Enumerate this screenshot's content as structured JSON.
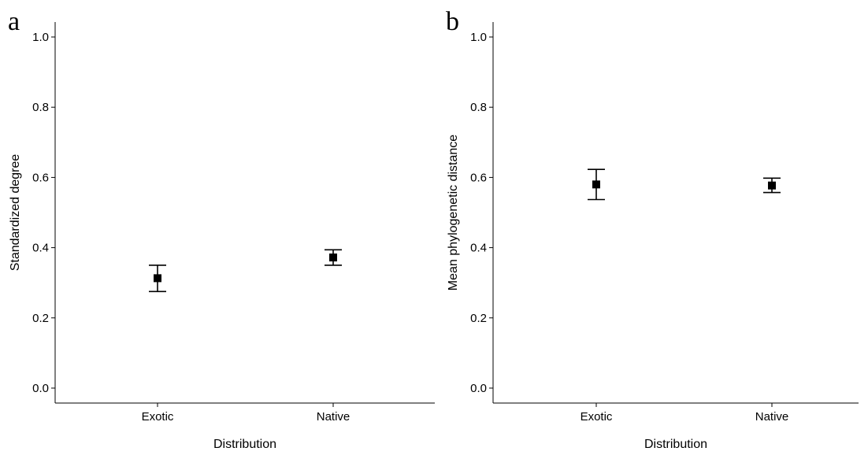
{
  "chart_data": [
    {
      "type": "scatter",
      "panel_label": "a",
      "categories": [
        "Exotic",
        "Native"
      ],
      "values": [
        0.313,
        0.372
      ],
      "error_low": [
        0.275,
        0.35
      ],
      "error_high": [
        0.35,
        0.394
      ],
      "xlabel": "Distribution",
      "ylabel": "Standardized degree",
      "ylim": [
        0.0,
        1.0
      ],
      "yticks": [
        "0.0",
        "0.2",
        "0.4",
        "0.6",
        "0.8",
        "1.0"
      ],
      "grid": false,
      "marker": "square",
      "color": "#000000"
    },
    {
      "type": "scatter",
      "panel_label": "b",
      "categories": [
        "Exotic",
        "Native"
      ],
      "values": [
        0.58,
        0.577
      ],
      "error_low": [
        0.537,
        0.557
      ],
      "error_high": [
        0.623,
        0.598
      ],
      "xlabel": "Distribution",
      "ylabel": "Mean phylogenetic distance",
      "ylim": [
        0.0,
        1.0
      ],
      "yticks": [
        "0.0",
        "0.2",
        "0.4",
        "0.6",
        "0.8",
        "1.0"
      ],
      "grid": false,
      "marker": "square",
      "color": "#000000"
    }
  ]
}
